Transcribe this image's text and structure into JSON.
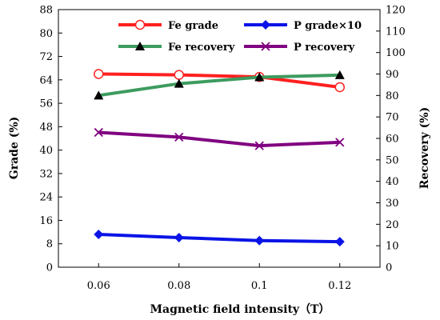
{
  "chart_data": {
    "type": "line",
    "xlabel": "Magnetic field intensity（T）",
    "ylabel_left": "Grade (%)",
    "ylabel_right": "Recovery (%)",
    "categories": [
      "0.06",
      "0.08",
      "0.1",
      "0.12"
    ],
    "ylim_left": [
      0,
      88
    ],
    "yticks_left": [
      0,
      8,
      16,
      24,
      32,
      40,
      48,
      56,
      64,
      72,
      80,
      88
    ],
    "ylim_right": [
      0,
      120
    ],
    "yticks_right": [
      0,
      10,
      20,
      30,
      40,
      50,
      60,
      70,
      80,
      90,
      100,
      110,
      120
    ],
    "grid": false,
    "legend_position": "top",
    "series": [
      {
        "name": "Fe grade",
        "axis": "left",
        "color": "#ff2020",
        "marker": "open-circle",
        "values": [
          66.0,
          65.7,
          65.0,
          61.5
        ]
      },
      {
        "name": "P grade×10",
        "axis": "left",
        "color": "#0a14e6",
        "marker": "diamond",
        "values": [
          11.2,
          10.1,
          9.1,
          8.7
        ]
      },
      {
        "name": "Fe recovery",
        "axis": "right",
        "color": "#3d9b5f",
        "marker": "triangle",
        "values": [
          80.0,
          85.5,
          88.5,
          89.5
        ]
      },
      {
        "name": "P recovery",
        "axis": "right",
        "color": "#800080",
        "marker": "x",
        "values": [
          62.8,
          60.6,
          56.6,
          58.2
        ]
      }
    ]
  }
}
